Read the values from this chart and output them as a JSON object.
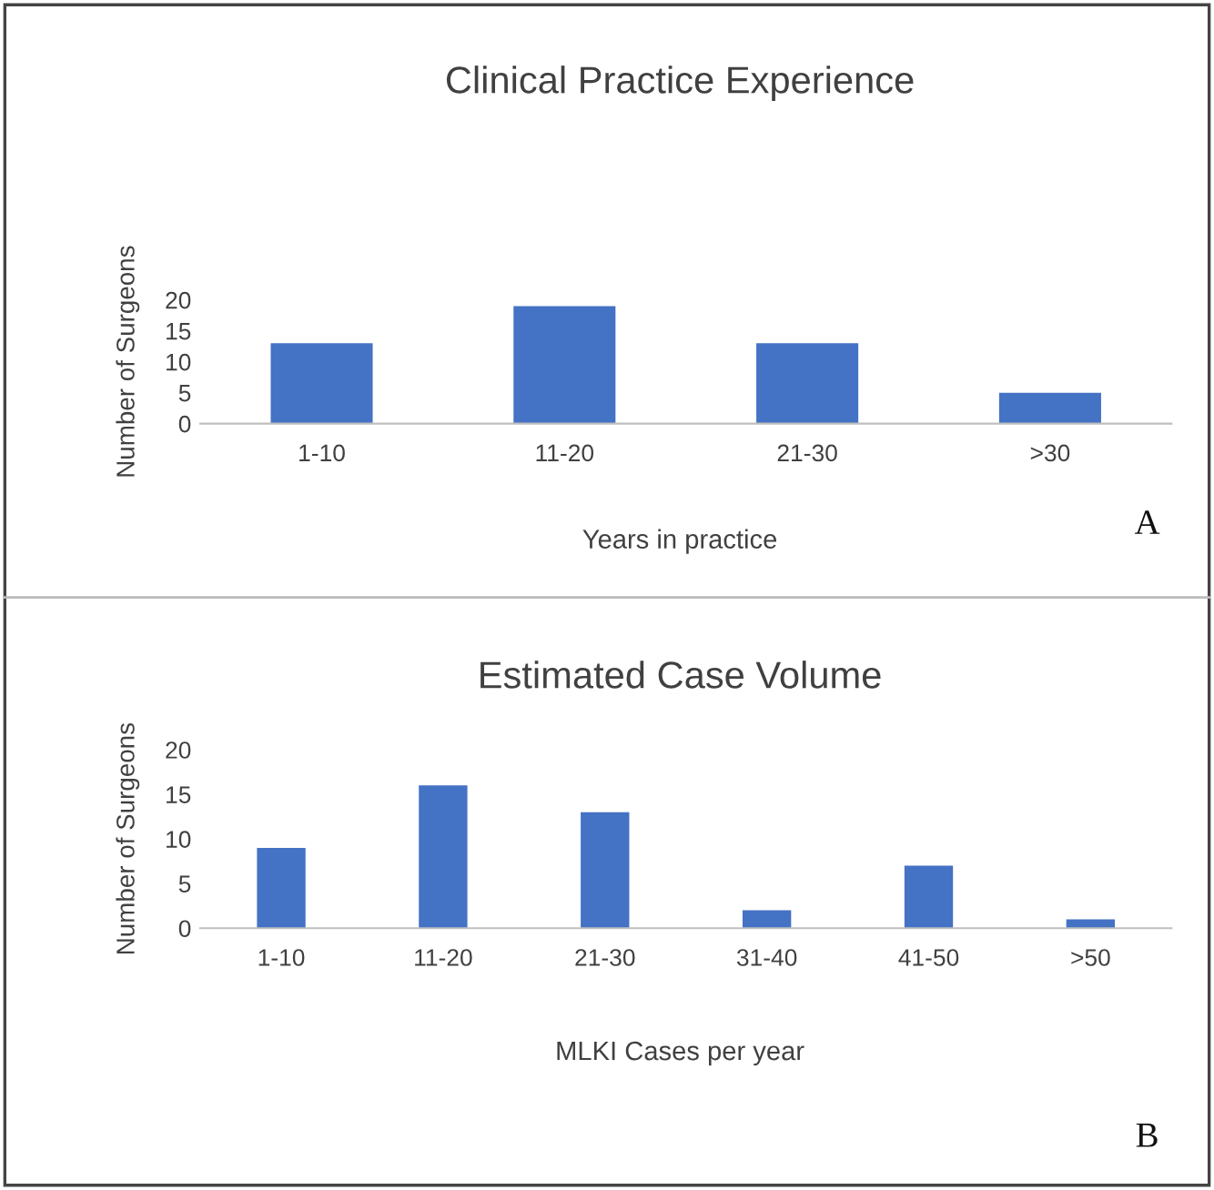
{
  "chart_data": [
    {
      "type": "bar",
      "title": "Clinical Practice Experience",
      "xlabel": "Years in practice",
      "ylabel": "Number of Surgeons",
      "categories": [
        "1-10",
        "11-20",
        "21-30",
        ">30"
      ],
      "values": [
        13,
        19,
        13,
        5
      ],
      "color": "#4472c4",
      "ylim": [
        0,
        20
      ],
      "yticks": [
        0,
        5,
        10,
        15,
        20
      ],
      "grid": false,
      "annotations": [
        "A"
      ]
    },
    {
      "type": "bar",
      "title": "Estimated Case Volume",
      "xlabel": "MLKI Cases per year",
      "ylabel": "Number of Surgeons",
      "categories": [
        "1-10",
        "11-20",
        "21-30",
        "31-40",
        "41-50",
        ">50"
      ],
      "values": [
        9,
        16,
        13,
        2,
        7,
        1
      ],
      "color": "#4472c4",
      "ylim": [
        0,
        20
      ],
      "yticks": [
        0,
        5,
        10,
        15,
        20
      ],
      "grid": false,
      "annotations": [
        "B"
      ]
    }
  ]
}
